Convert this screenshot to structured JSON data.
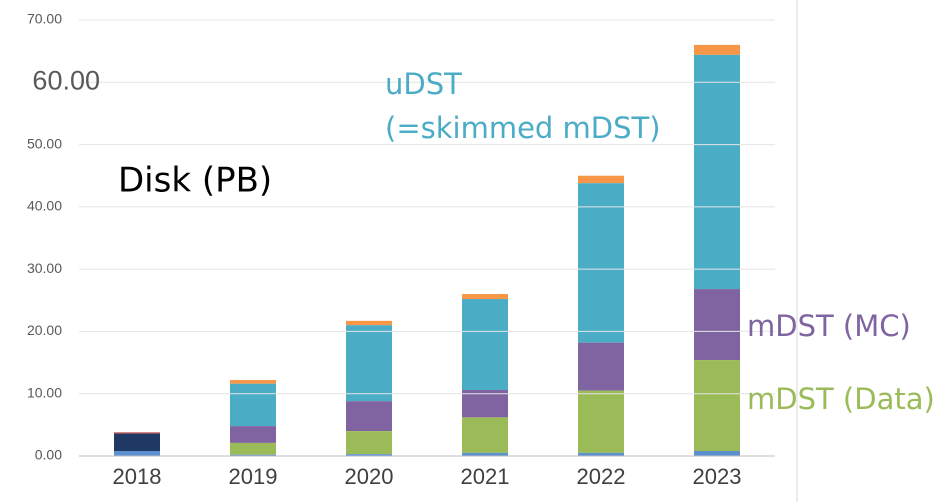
{
  "chart_data": {
    "type": "stacked_bar",
    "title": "Disk (PB)",
    "annotations": [
      "(=skimmed mDST)"
    ],
    "categories": [
      "2018",
      "2019",
      "2020",
      "2021",
      "2022",
      "2023"
    ],
    "series": [
      {
        "color": "#5b8fd0",
        "values": [
          0.8,
          0.2,
          0.3,
          0.5,
          0.5,
          0.8
        ]
      },
      {
        "color": "#1f3864",
        "values": [
          2.8,
          0,
          0,
          0,
          0,
          0
        ]
      },
      {
        "name": "mDST (Data)",
        "color": "#9bbb59",
        "values": [
          0,
          1.9,
          3.7,
          5.7,
          10.0,
          14.6
        ]
      },
      {
        "name": "mDST (MC)",
        "color": "#8064a2",
        "values": [
          0,
          2.7,
          4.8,
          4.4,
          7.7,
          11.4
        ]
      },
      {
        "name": "uDST",
        "color": "#4bacc6",
        "values": [
          0,
          6.8,
          12.2,
          14.6,
          25.6,
          37.6
        ]
      },
      {
        "color": "#c0504d",
        "values": [
          0.2,
          0,
          0,
          0,
          0,
          0
        ]
      },
      {
        "color": "#f79646",
        "values": [
          0,
          0.6,
          0.7,
          0.8,
          1.2,
          1.6
        ]
      }
    ],
    "ylim": [
      0,
      70
    ],
    "yticks": [
      {
        "value": 0,
        "label": "0.00"
      },
      {
        "value": 10,
        "label": "10.00"
      },
      {
        "value": 20,
        "label": "20.00"
      },
      {
        "value": 30,
        "label": "30.00"
      },
      {
        "value": 40,
        "label": "40.00"
      },
      {
        "value": 50,
        "label": "50.00"
      },
      {
        "value": 60,
        "label": "60.00"
      },
      {
        "value": 70,
        "label": "70.00"
      }
    ],
    "grid": true
  }
}
